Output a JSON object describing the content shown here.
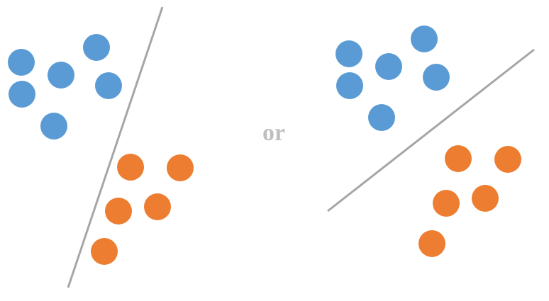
{
  "separator_word": "or",
  "colors": {
    "class_a": "#5b9bd5",
    "class_b": "#ed7d31",
    "boundary": "#a6a6a6",
    "separator_text": "#bfbfbf"
  },
  "panels": [
    {
      "name": "left-panel",
      "class_a_count": 6,
      "class_b_count": 5
    },
    {
      "name": "right-panel",
      "class_a_count": 6,
      "class_b_count": 5
    }
  ]
}
